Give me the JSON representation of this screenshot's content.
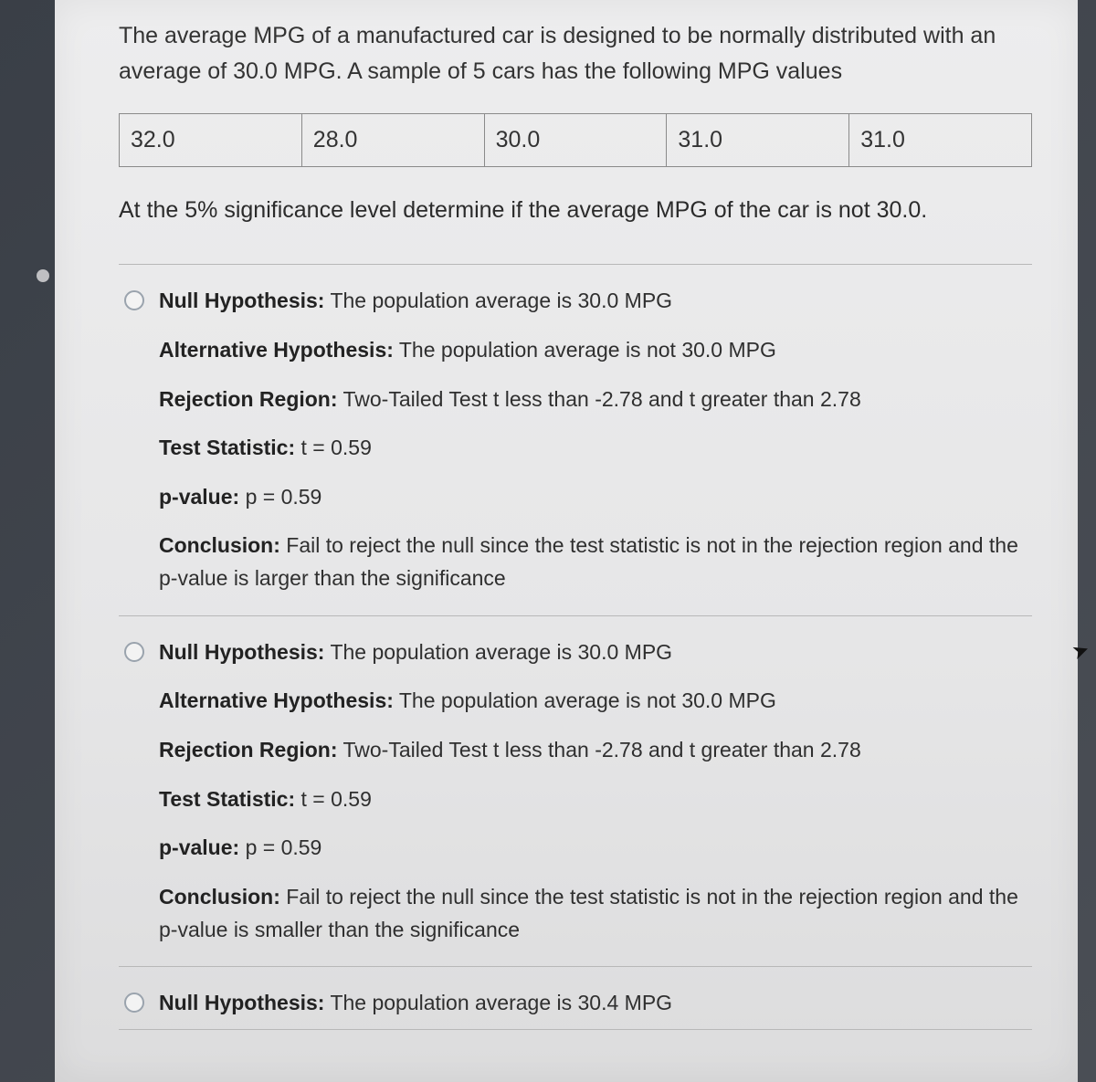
{
  "question": {
    "prompt": "The average MPG of a manufactured car is designed to be normally distributed with an average of 30.0 MPG.  A sample of 5 cars has the following MPG values",
    "data_values": [
      "32.0",
      "28.0",
      "30.0",
      "31.0",
      "31.0"
    ],
    "followup": "At the 5% significance level determine if the average MPG of the car is not 30.0."
  },
  "options": {
    "a": {
      "null_label": "Null Hypothesis:",
      "null_text": " The population average is 30.0 MPG",
      "alt_label": "Alternative Hypothesis:",
      "alt_text": " The population average is not 30.0 MPG",
      "rej_label": "Rejection Region:",
      "rej_text": " Two-Tailed Test t less than -2.78 and t greater than 2.78",
      "ts_label": "Test Statistic:",
      "ts_text": " t = 0.59",
      "p_label": "p-value:",
      "p_text": " p = 0.59",
      "con_label": "Conclusion:",
      "con_text": " Fail to reject the null since the test statistic is not in the rejection region and the p-value is larger than the significance"
    },
    "b": {
      "null_label": "Null Hypothesis:",
      "null_text": " The population average is 30.0 MPG",
      "alt_label": "Alternative Hypothesis:",
      "alt_text": " The population average is not 30.0 MPG",
      "rej_label": "Rejection Region:",
      "rej_text": " Two-Tailed Test t less than -2.78 and t greater than 2.78",
      "ts_label": "Test Statistic:",
      "ts_text": " t = 0.59",
      "p_label": "p-value:",
      "p_text": " p = 0.59",
      "con_label": "Conclusion:",
      "con_text": " Fail to reject the null since the test statistic is not in the rejection region and the p-value is smaller than the significance"
    },
    "c": {
      "null_label": "Null Hypothesis:",
      "null_text": " The population average is 30.4 MPG"
    }
  }
}
